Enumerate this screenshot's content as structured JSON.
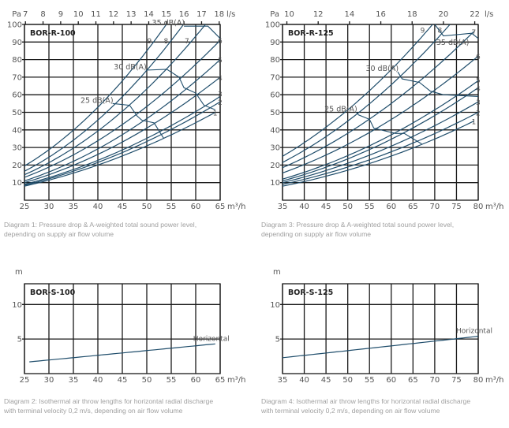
{
  "colors": {
    "grid": "#1a1a1a",
    "curve": "#1f4d6b",
    "tick_text": "#555555",
    "caption": "#a0a0a0"
  },
  "chart_data": [
    {
      "type": "line",
      "title": "BOR-R-100",
      "ylabel": "Pa",
      "xlabel": "m³/h",
      "x2label": "l/s",
      "xlim": [
        25,
        65
      ],
      "ylim": [
        0,
        100
      ],
      "xticks": [
        25,
        30,
        35,
        40,
        45,
        50,
        55,
        60,
        65
      ],
      "yticks": [
        10,
        20,
        30,
        40,
        50,
        60,
        70,
        80,
        90,
        100
      ],
      "x2ticks": [
        7,
        8,
        9,
        10,
        11,
        12,
        13,
        14,
        15,
        16,
        17,
        18
      ],
      "grid": true,
      "series": [
        {
          "name": "1",
          "points": [
            [
              25,
              8
            ],
            [
              64,
              50
            ]
          ]
        },
        {
          "name": "2",
          "points": [
            [
              25,
              8.5
            ],
            [
              65,
              56
            ]
          ]
        },
        {
          "name": "3",
          "points": [
            [
              25,
              9
            ],
            [
              65,
              59
            ]
          ]
        },
        {
          "name": "4",
          "points": [
            [
              25,
              10
            ],
            [
              65,
              70
            ]
          ]
        },
        {
          "name": "5",
          "points": [
            [
              25,
              11
            ],
            [
              65,
              80
            ]
          ]
        },
        {
          "name": "6",
          "points": [
            [
              25,
              13
            ],
            [
              65,
              91
            ]
          ]
        },
        {
          "name": "7",
          "points": [
            [
              25,
              14.5
            ],
            [
              62,
              100
            ]
          ]
        },
        {
          "name": "8",
          "points": [
            [
              25,
              16.5
            ],
            [
              57.5,
              100
            ]
          ]
        },
        {
          "name": "9",
          "points": [
            [
              25,
              19.5
            ],
            [
              54,
              100
            ]
          ]
        }
      ],
      "sound_lines": [
        {
          "name": "25 dB(A)",
          "points": [
            [
              43,
              55
            ],
            [
              46.5,
              54
            ],
            [
              48,
              48
            ],
            [
              49,
              45.5
            ],
            [
              51.5,
              44
            ],
            [
              53.5,
              35
            ]
          ]
        },
        {
          "name": "30 dB(A)",
          "points": [
            [
              49.8,
              74
            ],
            [
              54.1,
              74.5
            ],
            [
              56.6,
              70
            ],
            [
              57.6,
              64
            ],
            [
              60,
              61
            ],
            [
              61.7,
              54
            ],
            [
              64,
              51.5
            ]
          ]
        },
        {
          "name": "35 dB(A)",
          "points": [
            [
              57.6,
              99
            ],
            [
              62.5,
              99
            ],
            [
              65,
              92
            ]
          ]
        }
      ]
    },
    {
      "type": "line",
      "title": "BOR-R-125",
      "ylabel": "Pa",
      "xlabel": "m³/h",
      "x2label": "l/s",
      "xlim": [
        35,
        80
      ],
      "ylim": [
        0,
        100
      ],
      "xticks": [
        35,
        40,
        45,
        50,
        55,
        60,
        65,
        70,
        75,
        80
      ],
      "yticks": [
        10,
        20,
        30,
        40,
        50,
        60,
        70,
        80,
        90,
        100
      ],
      "x2ticks": [
        10,
        12,
        14,
        16,
        18,
        20,
        22
      ],
      "grid": true,
      "series": [
        {
          "name": "1",
          "points": [
            [
              35,
              8
            ],
            [
              79,
              45
            ]
          ]
        },
        {
          "name": "2",
          "points": [
            [
              35,
              9
            ],
            [
              80,
              50
            ]
          ]
        },
        {
          "name": "3",
          "points": [
            [
              35,
              10
            ],
            [
              80,
              56
            ]
          ]
        },
        {
          "name": "4",
          "points": [
            [
              35,
              11
            ],
            [
              80,
              64
            ]
          ]
        },
        {
          "name": "5",
          "points": [
            [
              35,
              12
            ],
            [
              80,
              68
            ]
          ]
        },
        {
          "name": "6",
          "points": [
            [
              35,
              15.5
            ],
            [
              80,
              82
            ]
          ]
        },
        {
          "name": "7",
          "points": [
            [
              35,
              18.5
            ],
            [
              79,
              96
            ]
          ]
        },
        {
          "name": "8",
          "points": [
            [
              35,
              21.5
            ],
            [
              73.5,
              100
            ]
          ]
        },
        {
          "name": "9",
          "points": [
            [
              35,
              25
            ],
            [
              69.5,
              100
            ]
          ]
        }
      ],
      "sound_lines": [
        {
          "name": "25 dB(A)",
          "points": [
            [
              52,
              50
            ],
            [
              52.5,
              48.5
            ],
            [
              55,
              46
            ],
            [
              56,
              41
            ],
            [
              61,
              38
            ],
            [
              63,
              38
            ],
            [
              67,
              32
            ]
          ]
        },
        {
          "name": "30 dB(A)",
          "points": [
            [
              61.5,
              73
            ],
            [
              62.5,
              69
            ],
            [
              66.5,
              67
            ],
            [
              69,
              62
            ],
            [
              72,
              60
            ],
            [
              80,
              59
            ]
          ]
        },
        {
          "name": "35 dB(A)",
          "points": [
            [
              70,
              100
            ],
            [
              72,
              93.5
            ],
            [
              78.5,
              95
            ],
            [
              80,
              92
            ]
          ]
        }
      ]
    },
    {
      "type": "line",
      "title": "BOR-S-100",
      "ylabel": "m",
      "xlabel": "m³/h",
      "xlim": [
        25,
        65
      ],
      "ylim": [
        0,
        13
      ],
      "xticks": [
        25,
        30,
        35,
        40,
        45,
        50,
        55,
        60,
        65
      ],
      "yticks": [
        5,
        10
      ],
      "grid": true,
      "series": [
        {
          "name": "Horizontal",
          "points": [
            [
              26,
              1.7
            ],
            [
              64,
              4.3
            ]
          ]
        }
      ]
    },
    {
      "type": "line",
      "title": "BOR-S-125",
      "ylabel": "m",
      "xlabel": "m³/h",
      "xlim": [
        35,
        80
      ],
      "ylim": [
        0,
        13
      ],
      "xticks": [
        35,
        40,
        45,
        50,
        55,
        60,
        65,
        70,
        75,
        80
      ],
      "yticks": [
        5,
        10
      ],
      "grid": true,
      "series": [
        {
          "name": "Horizontal",
          "points": [
            [
              35,
              2.3
            ],
            [
              80,
              5.4
            ]
          ]
        }
      ]
    }
  ],
  "captions": [
    {
      "line1": "Diagram 1: Pressure drop & A-weighted total sound power level,",
      "line2": "depending on supply air flow volume"
    },
    {
      "line1": "Diagram 3: Pressure drop & A-weighted total sound power level,",
      "line2": "depending on supply air flow volume"
    },
    {
      "line1": "Diagram 2: Isothermal air throw lengths for horizontal radial discharge",
      "line2": "with terminal velocity 0,2 m/s, depending on air flow volume"
    },
    {
      "line1": "Diagram 4: Isothermal air throw lengths for horizontal radial discharge",
      "line2": "with terminal velocity 0,2 m/s, depending on air flow volume"
    }
  ]
}
